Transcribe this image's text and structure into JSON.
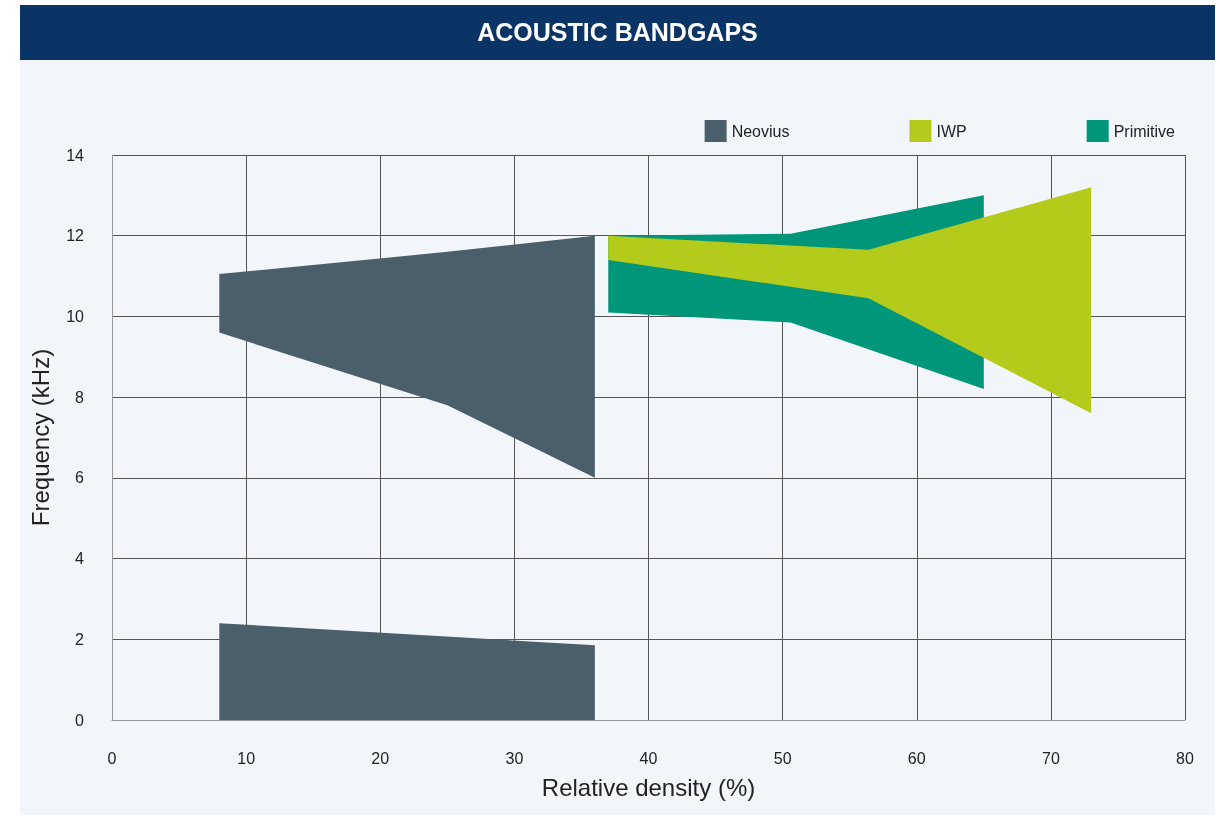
{
  "chart_data": {
    "type": "area",
    "title": "ACOUSTIC BANDGAPS",
    "xlabel": "Relative density (%)",
    "ylabel": "Frequency (kHz)",
    "series": [
      {
        "name": "Neovius",
        "color": "#4a5f69",
        "x": [
          8,
          25,
          36,
          36,
          25,
          8,
          null,
          8,
          36,
          36,
          8
        ],
        "values": [
          11.05,
          11.6,
          12.0,
          6.0,
          7.8,
          9.6,
          null,
          2.4,
          1.85,
          0,
          0
        ]
      },
      {
        "name": "IWP",
        "color": "#b5cb1c",
        "x": [
          37,
          56.4,
          73,
          73,
          56.4,
          37
        ],
        "values": [
          12.0,
          11.65,
          13.2,
          7.6,
          10.45,
          11.4
        ]
      },
      {
        "name": "Primitive",
        "color": "#00967a",
        "x": [
          37,
          50.6,
          65,
          65,
          50.6,
          37
        ],
        "values": [
          12.0,
          12.05,
          13.0,
          8.2,
          9.85,
          10.1
        ]
      }
    ],
    "xlim": [
      0,
      80
    ],
    "xticks": [
      0,
      10,
      20,
      30,
      40,
      50,
      60,
      70,
      80
    ],
    "ylim": [
      0,
      14
    ],
    "yticks": [
      0,
      2,
      4,
      6,
      8,
      10,
      12,
      14
    ],
    "grid": true,
    "legend": "top right"
  }
}
